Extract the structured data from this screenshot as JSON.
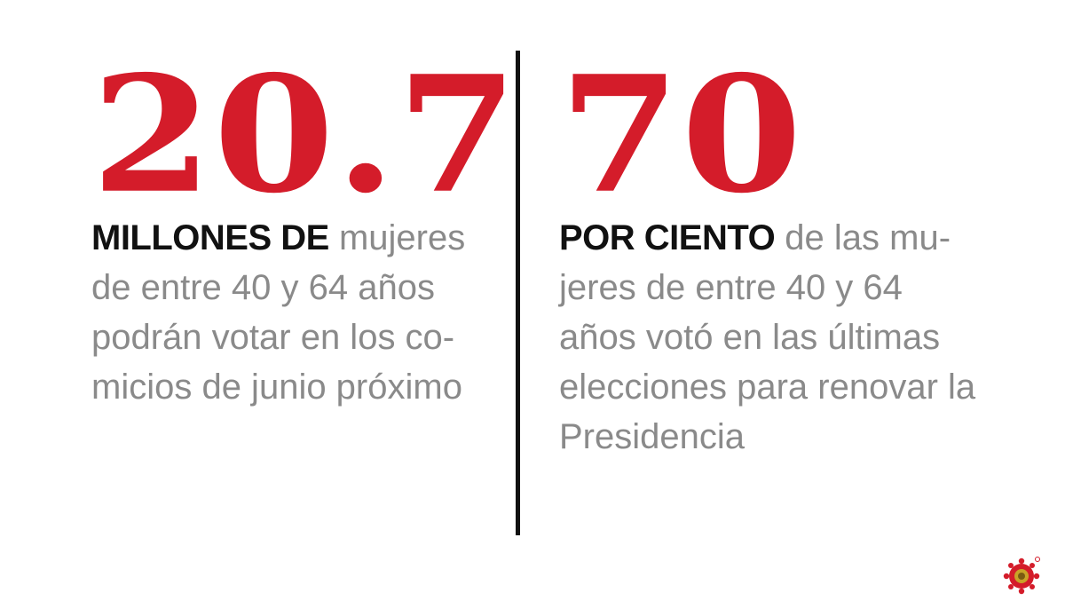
{
  "colors": {
    "accent": "#d41c2a",
    "emphasis": "#111111",
    "body_text": "#8a8a8a"
  },
  "stats": [
    {
      "number": "20.7",
      "lead": "MILLONES DE",
      "text": " mujeres\nde entre 40 y 64 años\npodrán votar en los co-\nmicios de junio próximo"
    },
    {
      "number": "70",
      "lead": "POR CIENTO",
      "text": " de las mu-\njeres de entre 40 y 64\naños votó en las últimas\nelecciones para renovar la\nPresidencia"
    }
  ],
  "logo": {
    "icon": "publisher-logo-icon"
  }
}
